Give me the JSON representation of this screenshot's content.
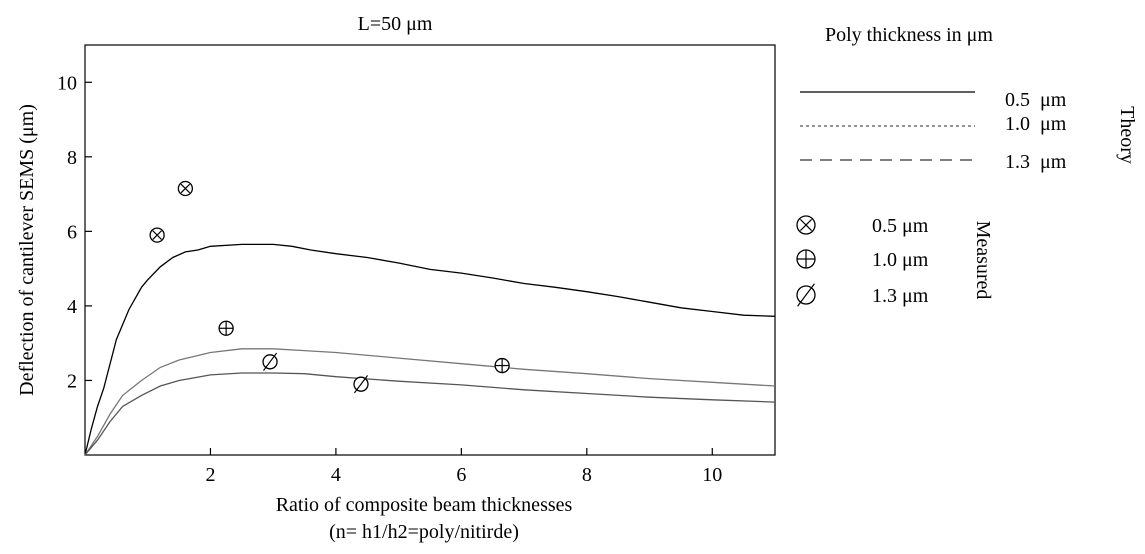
{
  "chart_data": {
    "type": "line",
    "title": "L=50 μm",
    "xlabel_line1": "Ratio of composite beam thicknesses",
    "xlabel_line2": "(n= h1/h2=poly/nitirde)",
    "ylabel": "Deflection of cantilever SEMS (μm)",
    "xlim": [
      0,
      11
    ],
    "ylim": [
      0,
      11
    ],
    "x_ticks": [
      2,
      4,
      6,
      8,
      10
    ],
    "y_ticks": [
      2,
      4,
      6,
      8,
      10
    ],
    "grid": false,
    "legend_title": "Poly  thickness in  μm",
    "legend_theory_label": "Theory",
    "legend_measured_label": "Measured",
    "series": [
      {
        "name": "0.5  μm",
        "group": "theory",
        "style": "solid",
        "x": [
          0,
          0.1,
          0.2,
          0.3,
          0.5,
          0.7,
          0.9,
          1.0,
          1.2,
          1.4,
          1.6,
          1.8,
          2.0,
          2.5,
          3.0,
          3.3,
          3.6,
          4.0,
          4.5,
          5.0,
          5.5,
          6.0,
          6.5,
          7.0,
          7.5,
          8.0,
          8.5,
          9.0,
          9.5,
          10.0,
          10.5,
          11.0
        ],
        "y": [
          0,
          0.7,
          1.3,
          1.8,
          3.1,
          3.9,
          4.5,
          4.7,
          5.05,
          5.3,
          5.45,
          5.5,
          5.6,
          5.65,
          5.65,
          5.6,
          5.5,
          5.4,
          5.3,
          5.15,
          4.98,
          4.88,
          4.75,
          4.6,
          4.5,
          4.38,
          4.25,
          4.1,
          3.95,
          3.85,
          3.75,
          3.72
        ]
      },
      {
        "name": "1.0  μm",
        "group": "theory",
        "style": "dotted",
        "x": [
          0,
          0.2,
          0.4,
          0.6,
          0.9,
          1.2,
          1.5,
          2.0,
          2.5,
          3.0,
          3.5,
          4.0,
          5.0,
          6.0,
          7.0,
          8.0,
          9.0,
          10.0,
          11.0
        ],
        "y": [
          0,
          0.5,
          1.1,
          1.6,
          2.0,
          2.35,
          2.55,
          2.75,
          2.85,
          2.85,
          2.8,
          2.75,
          2.6,
          2.45,
          2.3,
          2.18,
          2.05,
          1.95,
          1.85
        ]
      },
      {
        "name": "1.3  μm",
        "group": "theory",
        "style": "dashed",
        "x": [
          0,
          0.2,
          0.4,
          0.6,
          0.9,
          1.2,
          1.5,
          2.0,
          2.5,
          3.0,
          3.5,
          4.0,
          5.0,
          6.0,
          7.0,
          8.0,
          9.0,
          10.0,
          11.0
        ],
        "y": [
          0,
          0.4,
          0.9,
          1.3,
          1.6,
          1.85,
          2.0,
          2.15,
          2.2,
          2.2,
          2.18,
          2.1,
          1.98,
          1.88,
          1.75,
          1.65,
          1.55,
          1.48,
          1.42
        ]
      }
    ],
    "measured": [
      {
        "name": "0.5 μm",
        "marker": "circle-x",
        "points": [
          {
            "x": 1.15,
            "y": 5.9
          },
          {
            "x": 1.6,
            "y": 7.15
          }
        ]
      },
      {
        "name": "1.0 μm",
        "marker": "circle-plus",
        "points": [
          {
            "x": 2.25,
            "y": 3.4
          },
          {
            "x": 6.65,
            "y": 2.4
          }
        ]
      },
      {
        "name": "1.3 μm",
        "marker": "circle-slash",
        "points": [
          {
            "x": 2.95,
            "y": 2.5
          },
          {
            "x": 4.4,
            "y": 1.9
          }
        ]
      }
    ]
  }
}
